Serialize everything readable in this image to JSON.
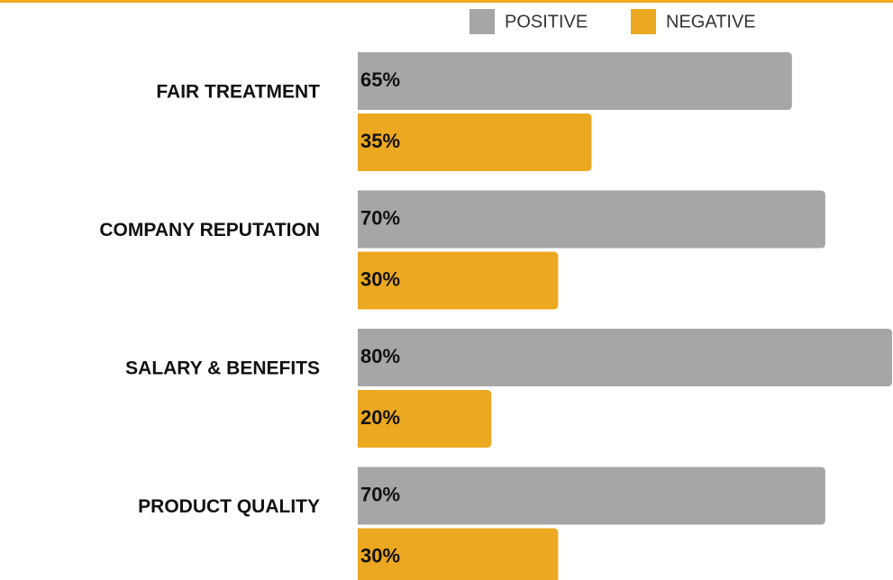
{
  "chart_data": {
    "type": "hbar",
    "categories": [
      "FAIR TREATMENT",
      "COMPANY REPUTATION",
      "SALARY & BENEFITS",
      "PRODUCT QUALITY"
    ],
    "series": [
      {
        "name": "POSITIVE",
        "color": "#a6a6a6",
        "values": [
          65,
          70,
          80,
          70
        ],
        "value_labels": [
          "65%",
          "70%",
          "80%",
          "70%"
        ]
      },
      {
        "name": "NEGATIVE",
        "color": "#eca820",
        "values": [
          35,
          30,
          20,
          30
        ],
        "value_labels": [
          "35%",
          "30%",
          "20%",
          "30%"
        ]
      }
    ],
    "accent_color": "#eca820"
  }
}
